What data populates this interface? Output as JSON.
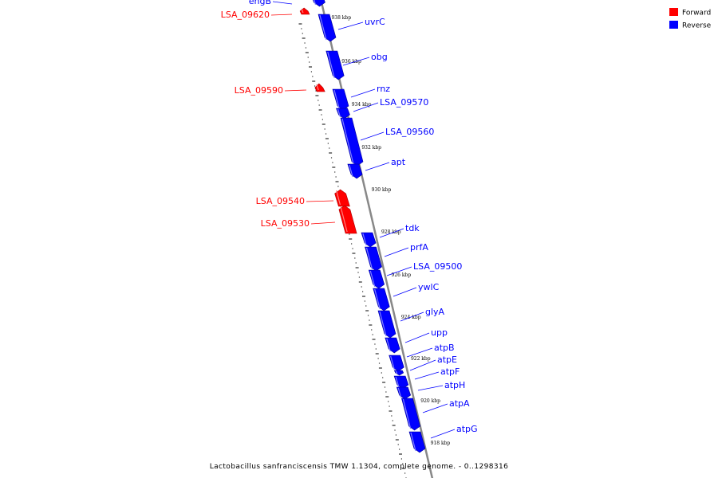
{
  "colors": {
    "forward": "#ff0000",
    "reverse": "#0000ff",
    "backbone": "#888888"
  },
  "legend": [
    {
      "label": "Forward",
      "color": "#ff0000"
    },
    {
      "label": "Reverse",
      "color": "#0000ff"
    }
  ],
  "caption": "Lactobacillus sanfranciscensis TMW 1.1304, complete genome. - 0..1298316",
  "scale_labels": [
    "938 kbp",
    "936 kbp",
    "934 kbp",
    "932 kbp",
    "930 kbp",
    "928 kbp",
    "926 kbp",
    "924 kbp",
    "922 kbp",
    "920 kbp",
    "918 kbp"
  ],
  "genes": [
    {
      "name": "engB",
      "strand": "reverse"
    },
    {
      "name": "LSA_09620",
      "strand": "forward"
    },
    {
      "name": "uvrC",
      "strand": "reverse"
    },
    {
      "name": "obg",
      "strand": "reverse"
    },
    {
      "name": "LSA_09590",
      "strand": "forward"
    },
    {
      "name": "rnz",
      "strand": "reverse"
    },
    {
      "name": "LSA_09570",
      "strand": "reverse"
    },
    {
      "name": "LSA_09560",
      "strand": "reverse"
    },
    {
      "name": "apt",
      "strand": "reverse"
    },
    {
      "name": "LSA_09540",
      "strand": "forward"
    },
    {
      "name": "LSA_09530",
      "strand": "forward"
    },
    {
      "name": "tdk",
      "strand": "reverse"
    },
    {
      "name": "prfA",
      "strand": "reverse"
    },
    {
      "name": "LSA_09500",
      "strand": "reverse"
    },
    {
      "name": "ywlC",
      "strand": "reverse"
    },
    {
      "name": "glyA",
      "strand": "reverse"
    },
    {
      "name": "upp",
      "strand": "reverse"
    },
    {
      "name": "atpB",
      "strand": "reverse"
    },
    {
      "name": "atpE",
      "strand": "reverse"
    },
    {
      "name": "atpF",
      "strand": "reverse"
    },
    {
      "name": "atpH",
      "strand": "reverse"
    },
    {
      "name": "atpA",
      "strand": "reverse"
    },
    {
      "name": "atpG",
      "strand": "reverse"
    }
  ]
}
